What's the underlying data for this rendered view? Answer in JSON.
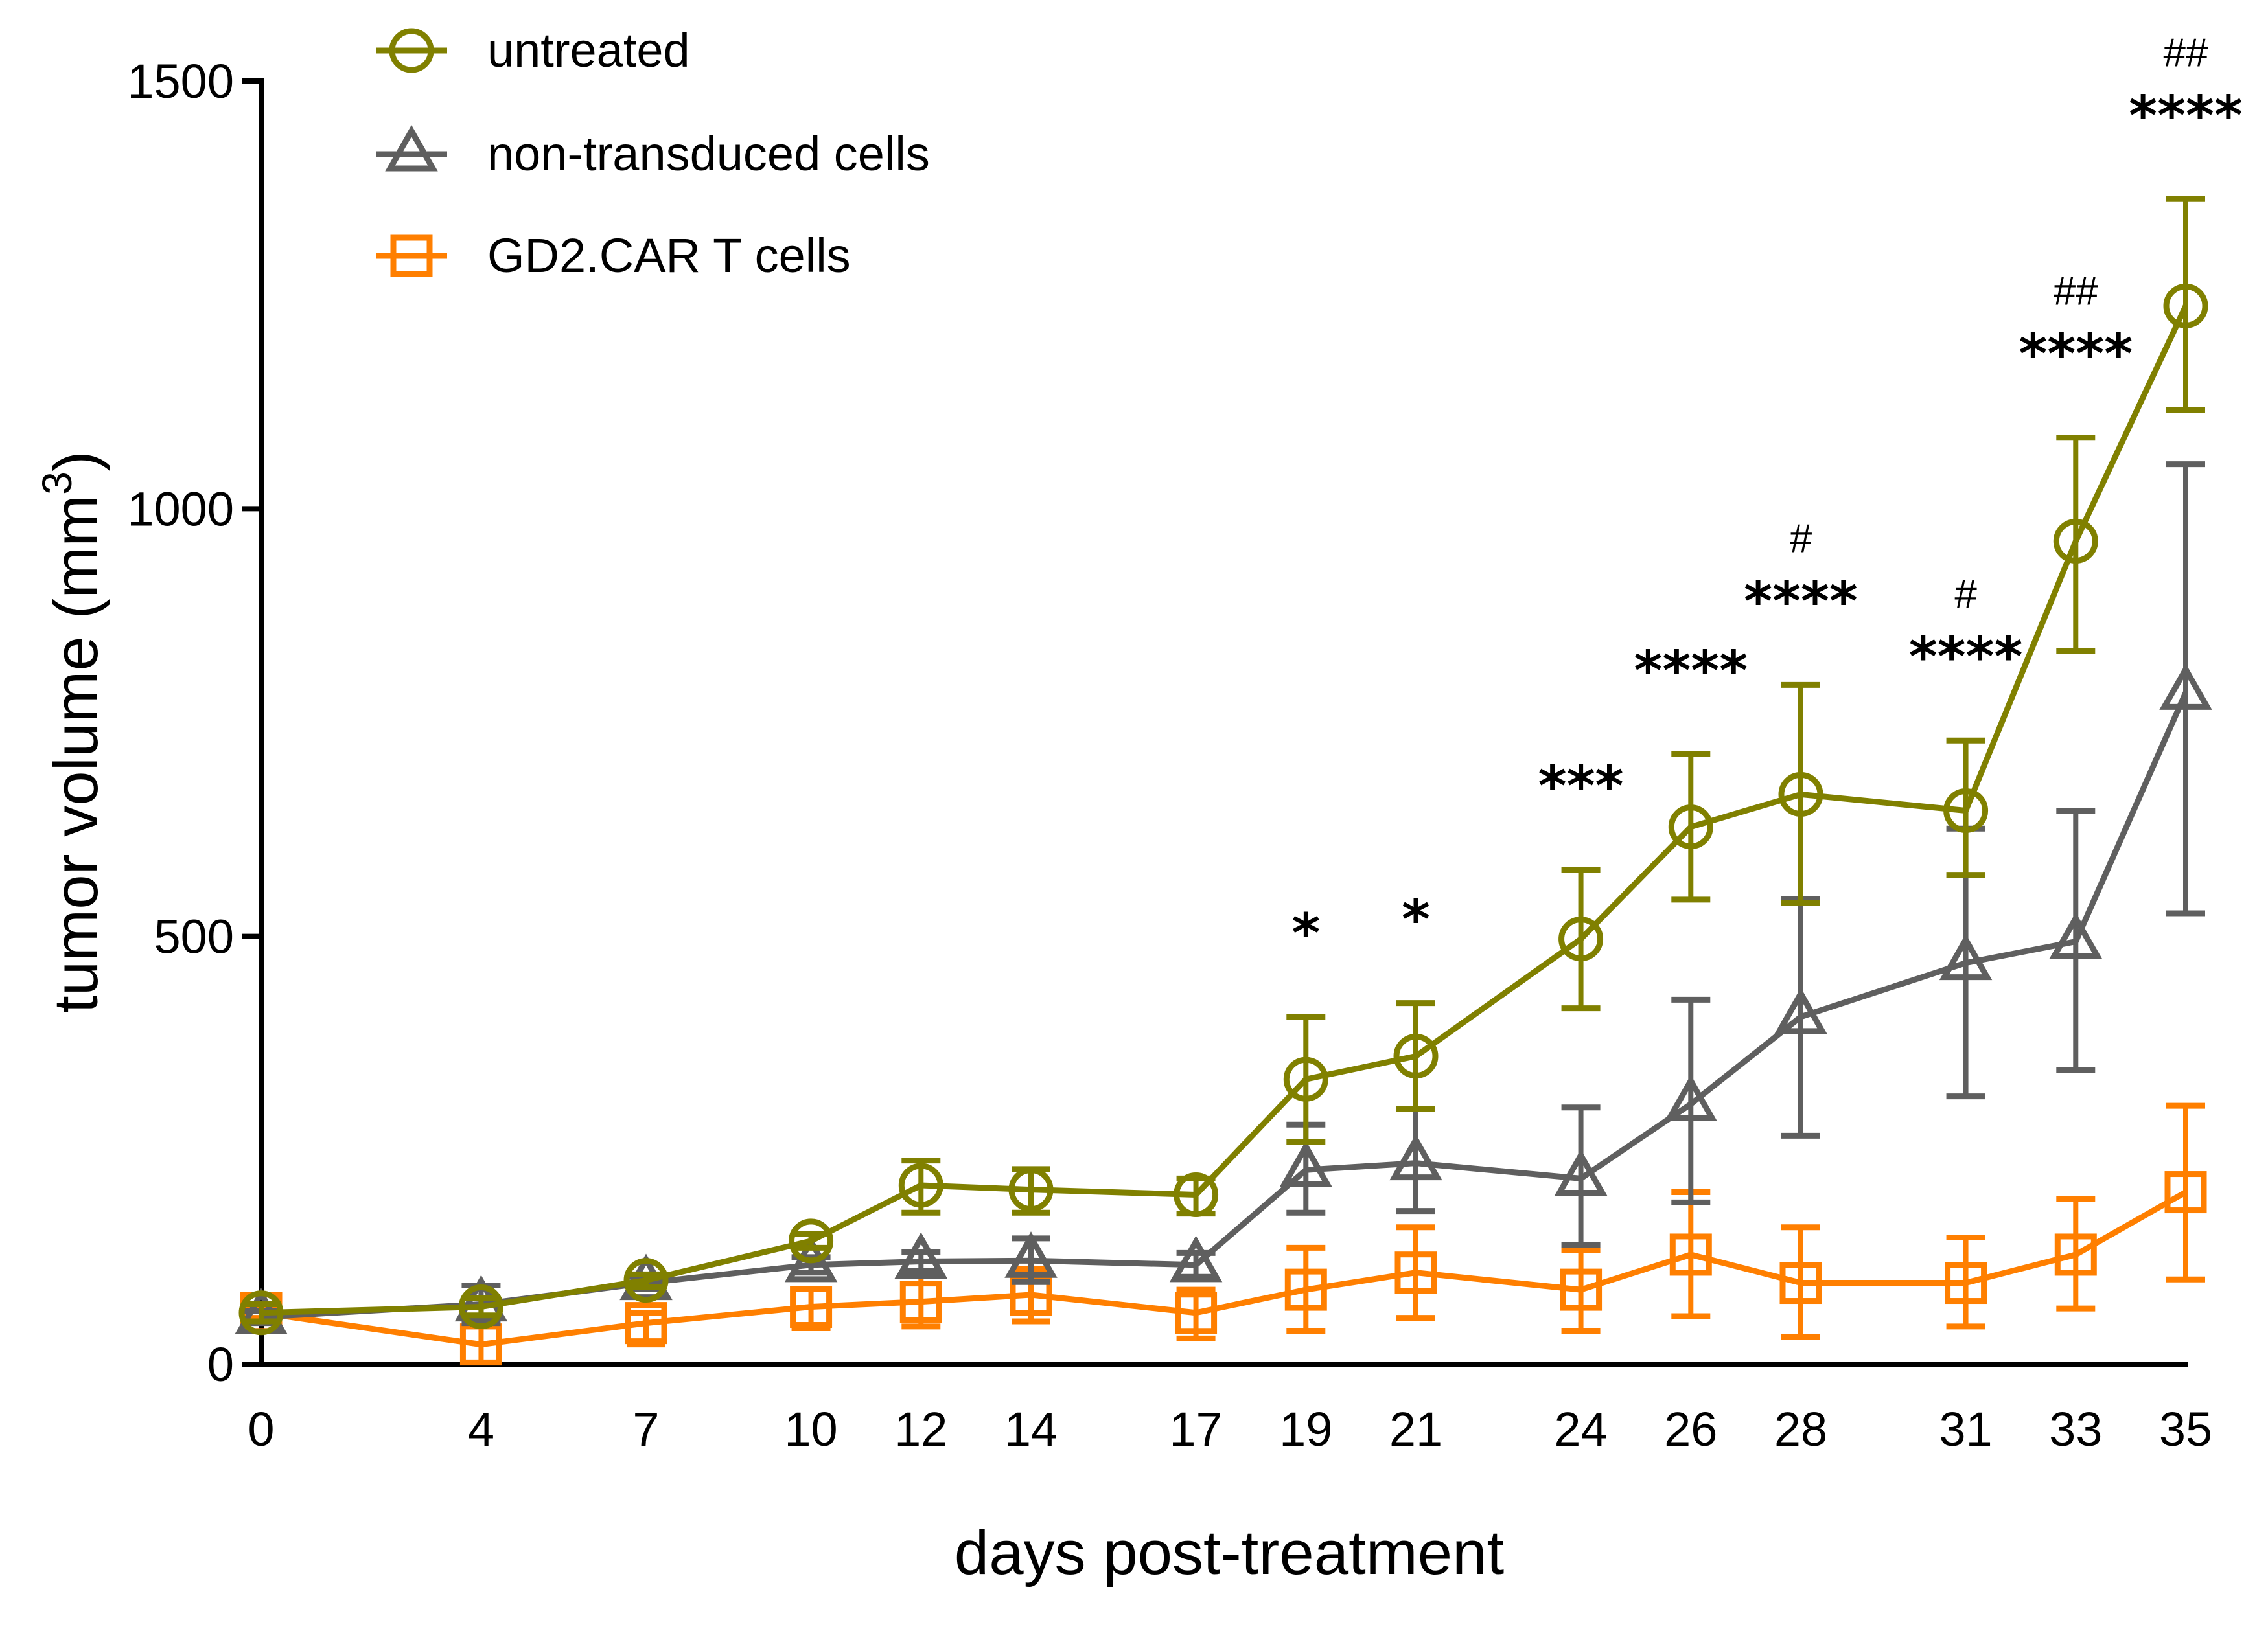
{
  "chart_data": {
    "type": "line",
    "title": "",
    "xlabel": "days post-treatment",
    "ylabel_main": "tumor volume (mm",
    "ylabel_sup": "3",
    "ylabel_close": ")",
    "ylabel": "tumor volume (mm³)",
    "xlim": [
      0,
      35
    ],
    "ylim": [
      0,
      1500
    ],
    "x_ticks": [
      0,
      4,
      7,
      10,
      12,
      14,
      17,
      19,
      21,
      24,
      26,
      28,
      31,
      33,
      35
    ],
    "y_ticks": [
      0,
      500,
      1000,
      1500
    ],
    "grid": false,
    "legend_position": "top-left",
    "error_bars": "mean ± error",
    "x": [
      0,
      4,
      7,
      10,
      12,
      14,
      17,
      19,
      21,
      24,
      26,
      28,
      31,
      33,
      35
    ],
    "series": [
      {
        "name": "untreated",
        "color": "#808000",
        "marker": "circle",
        "values": [
          60,
          67,
          98,
          144,
          209,
          204,
          198,
          333,
          360,
          497,
          628,
          666,
          647,
          962,
          1237
        ],
        "err_upper": [
          70,
          77,
          105,
          152,
          238,
          228,
          217,
          406,
          422,
          578,
          713,
          794,
          729,
          1083,
          1362
        ],
        "err_lower": [
          50,
          57,
          90,
          136,
          177,
          177,
          176,
          260,
          298,
          416,
          543,
          539,
          572,
          834,
          1115
        ]
      },
      {
        "name": "non-transduced cells",
        "color": "#5f5f5f",
        "marker": "triangle",
        "values": [
          55,
          70,
          95,
          116,
          120,
          121,
          116,
          227,
          235,
          217,
          304,
          406,
          469,
          494,
          785
        ],
        "err_upper": [
          62,
          92,
          102,
          125,
          131,
          147,
          130,
          280,
          298,
          300,
          426,
          544,
          626,
          647,
          1052
        ],
        "err_lower": [
          48,
          48,
          88,
          107,
          109,
          96,
          102,
          177,
          179,
          139,
          189,
          267,
          313,
          344,
          527
        ]
      },
      {
        "name": "GD2.CAR T cells",
        "color": "#ff7f00",
        "marker": "square",
        "values": [
          60,
          23,
          48,
          67,
          73,
          81,
          60,
          87,
          107,
          87,
          128,
          95,
          95,
          128,
          201
        ],
        "err_upper": [
          66,
          44,
          60,
          88,
          105,
          111,
          87,
          136,
          160,
          133,
          201,
          160,
          148,
          193,
          302
        ],
        "err_lower": [
          54,
          2,
          23,
          42,
          44,
          50,
          30,
          39,
          54,
          39,
          56,
          32,
          44,
          65,
          99
        ]
      }
    ],
    "annotations": [
      {
        "day": 19,
        "stars": "*",
        "hash": ""
      },
      {
        "day": 21,
        "stars": "*",
        "hash": ""
      },
      {
        "day": 24,
        "stars": "***",
        "hash": ""
      },
      {
        "day": 26,
        "stars": "****",
        "hash": ""
      },
      {
        "day": 28,
        "stars": "****",
        "hash": "#"
      },
      {
        "day": 31,
        "stars": "****",
        "hash": "#"
      },
      {
        "day": 33,
        "stars": "****",
        "hash": "##"
      },
      {
        "day": 35,
        "stars": "****",
        "hash": "##"
      }
    ]
  }
}
